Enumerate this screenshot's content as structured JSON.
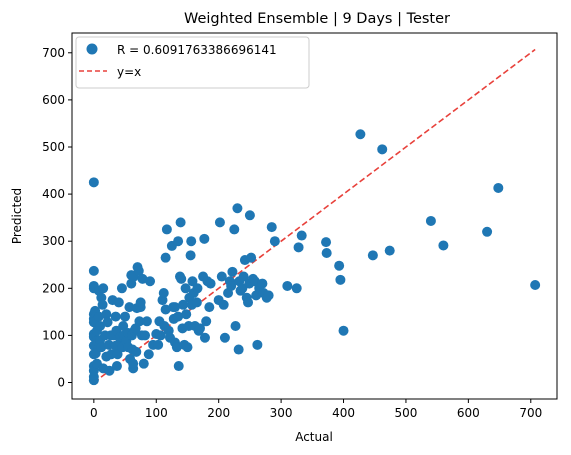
{
  "chart_data": {
    "type": "scatter",
    "title": "Weighted Ensemble | 9 Days | Tester",
    "xlabel": "Actual",
    "ylabel": "Predicted",
    "xlim": [
      -35,
      742
    ],
    "ylim": [
      -35,
      742
    ],
    "xticks": [
      0,
      100,
      200,
      300,
      400,
      500,
      600,
      700
    ],
    "yticks": [
      0,
      100,
      200,
      300,
      400,
      500,
      600,
      700
    ],
    "grid": false,
    "legend_position": "upper left",
    "colors": {
      "scatter": "#1f77b4",
      "identity_line": "#e8413b"
    },
    "series": [
      {
        "name": "R = 0.6091763386696141",
        "kind": "scatter",
        "points": [
          [
            0,
            425
          ],
          [
            0,
            237
          ],
          [
            0,
            205
          ],
          [
            0,
            200
          ],
          [
            0,
            145
          ],
          [
            0,
            135
          ],
          [
            0,
            128
          ],
          [
            0,
            103
          ],
          [
            0,
            97
          ],
          [
            0,
            78
          ],
          [
            0,
            60
          ],
          [
            0,
            35
          ],
          [
            0,
            25
          ],
          [
            0,
            12
          ],
          [
            0,
            5
          ],
          [
            2,
            152
          ],
          [
            3,
            62
          ],
          [
            4,
            88
          ],
          [
            5,
            40
          ],
          [
            5,
            110
          ],
          [
            8,
            140
          ],
          [
            8,
            195
          ],
          [
            10,
            120
          ],
          [
            10,
            90
          ],
          [
            12,
            180
          ],
          [
            12,
            75
          ],
          [
            14,
            165
          ],
          [
            15,
            200
          ],
          [
            15,
            30
          ],
          [
            18,
            100
          ],
          [
            20,
            55
          ],
          [
            20,
            145
          ],
          [
            22,
            128
          ],
          [
            24,
            80
          ],
          [
            25,
            25
          ],
          [
            27,
            100
          ],
          [
            28,
            60
          ],
          [
            30,
            175
          ],
          [
            32,
            100
          ],
          [
            35,
            140
          ],
          [
            35,
            78
          ],
          [
            36,
            110
          ],
          [
            37,
            35
          ],
          [
            38,
            60
          ],
          [
            40,
            170
          ],
          [
            42,
            85
          ],
          [
            43,
            98
          ],
          [
            45,
            200
          ],
          [
            46,
            75
          ],
          [
            47,
            120
          ],
          [
            48,
            100
          ],
          [
            50,
            140
          ],
          [
            52,
            88
          ],
          [
            55,
            75
          ],
          [
            55,
            105
          ],
          [
            57,
            160
          ],
          [
            58,
            50
          ],
          [
            60,
            228
          ],
          [
            60,
            210
          ],
          [
            61,
            100
          ],
          [
            62,
            70
          ],
          [
            63,
            30
          ],
          [
            63,
            40
          ],
          [
            64,
            225
          ],
          [
            65,
            110
          ],
          [
            67,
            115
          ],
          [
            68,
            65
          ],
          [
            69,
            158
          ],
          [
            70,
            245
          ],
          [
            72,
            237
          ],
          [
            73,
            130
          ],
          [
            75,
            160
          ],
          [
            75,
            170
          ],
          [
            77,
            100
          ],
          [
            78,
            220
          ],
          [
            80,
            40
          ],
          [
            82,
            100
          ],
          [
            85,
            130
          ],
          [
            88,
            60
          ],
          [
            90,
            215
          ],
          [
            95,
            80
          ],
          [
            100,
            103
          ],
          [
            103,
            80
          ],
          [
            105,
            130
          ],
          [
            107,
            100
          ],
          [
            110,
            175
          ],
          [
            112,
            190
          ],
          [
            113,
            120
          ],
          [
            115,
            155
          ],
          [
            115,
            265
          ],
          [
            117,
            325
          ],
          [
            120,
            110
          ],
          [
            122,
            95
          ],
          [
            125,
            290
          ],
          [
            127,
            160
          ],
          [
            128,
            135
          ],
          [
            130,
            85
          ],
          [
            130,
            160
          ],
          [
            133,
            75
          ],
          [
            135,
            300
          ],
          [
            135,
            140
          ],
          [
            136,
            35
          ],
          [
            138,
            225
          ],
          [
            139,
            340
          ],
          [
            140,
            220
          ],
          [
            142,
            115
          ],
          [
            143,
            165
          ],
          [
            145,
            80
          ],
          [
            147,
            200
          ],
          [
            148,
            145
          ],
          [
            150,
            75
          ],
          [
            152,
            120
          ],
          [
            153,
            180
          ],
          [
            155,
            270
          ],
          [
            156,
            300
          ],
          [
            157,
            165
          ],
          [
            158,
            215
          ],
          [
            160,
            190
          ],
          [
            162,
            120
          ],
          [
            165,
            170
          ],
          [
            166,
            200
          ],
          [
            168,
            110
          ],
          [
            170,
            115
          ],
          [
            175,
            225
          ],
          [
            177,
            305
          ],
          [
            178,
            95
          ],
          [
            180,
            130
          ],
          [
            182,
            215
          ],
          [
            185,
            160
          ],
          [
            187,
            210
          ],
          [
            200,
            175
          ],
          [
            202,
            340
          ],
          [
            205,
            225
          ],
          [
            208,
            165
          ],
          [
            210,
            95
          ],
          [
            215,
            190
          ],
          [
            218,
            215
          ],
          [
            220,
            205
          ],
          [
            222,
            235
          ],
          [
            225,
            325
          ],
          [
            227,
            120
          ],
          [
            230,
            370
          ],
          [
            232,
            70
          ],
          [
            233,
            215
          ],
          [
            235,
            195
          ],
          [
            238,
            200
          ],
          [
            240,
            225
          ],
          [
            242,
            260
          ],
          [
            245,
            180
          ],
          [
            247,
            170
          ],
          [
            249,
            210
          ],
          [
            250,
            355
          ],
          [
            252,
            265
          ],
          [
            255,
            220
          ],
          [
            258,
            215
          ],
          [
            260,
            185
          ],
          [
            262,
            80
          ],
          [
            265,
            200
          ],
          [
            270,
            210
          ],
          [
            272,
            190
          ],
          [
            277,
            180
          ],
          [
            280,
            185
          ],
          [
            285,
            330
          ],
          [
            290,
            300
          ],
          [
            310,
            205
          ],
          [
            325,
            200
          ],
          [
            328,
            287
          ],
          [
            333,
            312
          ],
          [
            372,
            298
          ],
          [
            373,
            275
          ],
          [
            393,
            248
          ],
          [
            395,
            218
          ],
          [
            400,
            110
          ],
          [
            427,
            527
          ],
          [
            447,
            270
          ],
          [
            462,
            495
          ],
          [
            474,
            280
          ],
          [
            540,
            343
          ],
          [
            560,
            291
          ],
          [
            630,
            320
          ],
          [
            648,
            413
          ],
          [
            707,
            207
          ]
        ]
      },
      {
        "name": "y=x",
        "kind": "line",
        "style": "dashed",
        "points": [
          [
            0,
            0
          ],
          [
            707,
            707
          ]
        ]
      }
    ]
  }
}
